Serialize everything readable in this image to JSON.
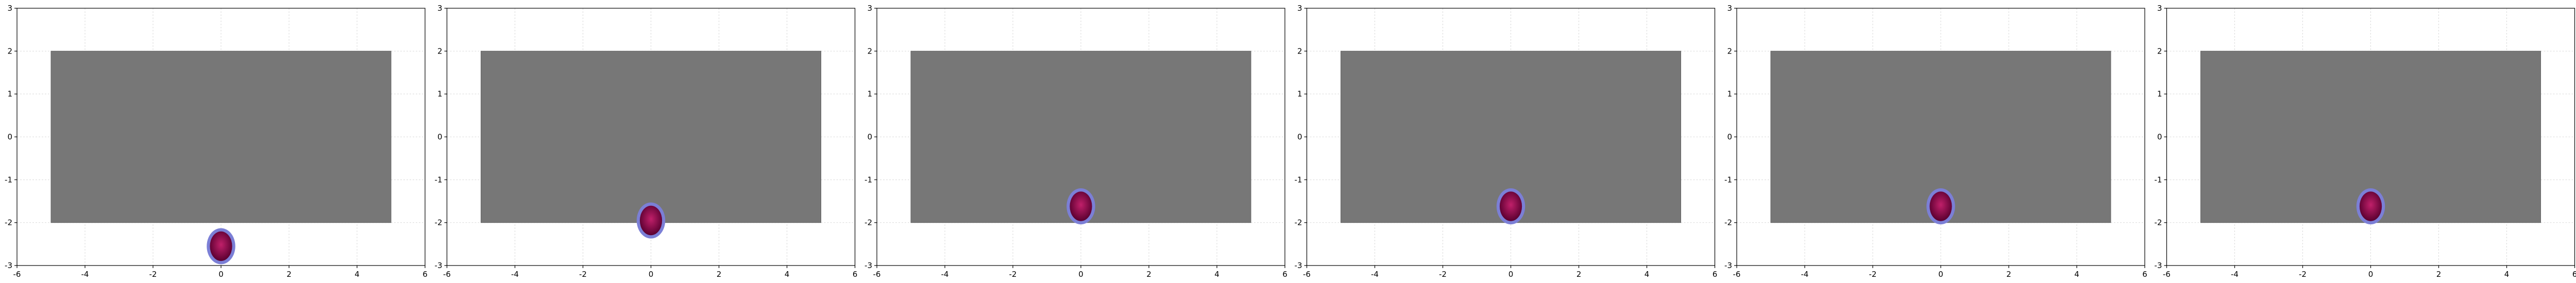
{
  "colors": {
    "background": "#ffffff",
    "rectangle_fill": "#777777",
    "rectangle_edge": "#666666",
    "ball_outer": "#7b7fd6",
    "ball_inner_light": "#c0206a",
    "ball_inner_dark": "#5a0030",
    "grid": "#d9d9d9"
  },
  "chart_data": [
    {
      "type": "scatter",
      "xlim": [
        -6,
        6
      ],
      "ylim": [
        -3,
        3
      ],
      "x_ticks": [
        -6,
        -4,
        -2,
        0,
        2,
        4,
        6
      ],
      "y_ticks": [
        -3,
        -2,
        -1,
        0,
        1,
        2,
        3
      ],
      "x_tick_labels": [
        "-6",
        "-4",
        "-2",
        "0",
        "2",
        "4",
        "6"
      ],
      "y_tick_labels": [
        "-3",
        "-2",
        "-1",
        "0",
        "1",
        "2",
        "3"
      ],
      "grid": true,
      "rectangle": {
        "x0": -5,
        "x1": 5,
        "y0": -2,
        "y1": 2
      },
      "ball": {
        "x": 0,
        "y": -2.55,
        "radius": 0.42
      }
    },
    {
      "type": "scatter",
      "xlim": [
        -6,
        6
      ],
      "ylim": [
        -3,
        3
      ],
      "x_ticks": [
        -6,
        -4,
        -2,
        0,
        2,
        4,
        6
      ],
      "y_ticks": [
        -3,
        -2,
        -1,
        0,
        1,
        2,
        3
      ],
      "x_tick_labels": [
        "-6",
        "-4",
        "-2",
        "0",
        "2",
        "4",
        "6"
      ],
      "y_tick_labels": [
        "-3",
        "-2",
        "-1",
        "0",
        "1",
        "2",
        "3"
      ],
      "grid": true,
      "rectangle": {
        "x0": -5,
        "x1": 5,
        "y0": -2,
        "y1": 2
      },
      "ball": {
        "x": 0,
        "y": -1.95,
        "radius": 0.42
      }
    },
    {
      "type": "scatter",
      "xlim": [
        -6,
        6
      ],
      "ylim": [
        -3,
        3
      ],
      "x_ticks": [
        -6,
        -4,
        -2,
        0,
        2,
        4,
        6
      ],
      "y_ticks": [
        -3,
        -2,
        -1,
        0,
        1,
        2,
        3
      ],
      "x_tick_labels": [
        "-6",
        "-4",
        "-2",
        "0",
        "2",
        "4",
        "6"
      ],
      "y_tick_labels": [
        "-3",
        "-2",
        "-1",
        "0",
        "1",
        "2",
        "3"
      ],
      "grid": true,
      "rectangle": {
        "x0": -5,
        "x1": 5,
        "y0": -2,
        "y1": 2
      },
      "ball": {
        "x": 0,
        "y": -1.62,
        "radius": 0.42
      }
    },
    {
      "type": "scatter",
      "xlim": [
        -6,
        6
      ],
      "ylim": [
        -3,
        3
      ],
      "x_ticks": [
        -6,
        -4,
        -2,
        0,
        2,
        4,
        6
      ],
      "y_ticks": [
        -3,
        -2,
        -1,
        0,
        1,
        2,
        3
      ],
      "x_tick_labels": [
        "-6",
        "-4",
        "-2",
        "0",
        "2",
        "4",
        "6"
      ],
      "y_tick_labels": [
        "-3",
        "-2",
        "-1",
        "0",
        "1",
        "2",
        "3"
      ],
      "grid": true,
      "rectangle": {
        "x0": -5,
        "x1": 5,
        "y0": -2,
        "y1": 2
      },
      "ball": {
        "x": 0,
        "y": -1.62,
        "radius": 0.42
      }
    },
    {
      "type": "scatter",
      "xlim": [
        -6,
        6
      ],
      "ylim": [
        -3,
        3
      ],
      "x_ticks": [
        -6,
        -4,
        -2,
        0,
        2,
        4,
        6
      ],
      "y_ticks": [
        -3,
        -2,
        -1,
        0,
        1,
        2,
        3
      ],
      "x_tick_labels": [
        "-6",
        "-4",
        "-2",
        "0",
        "2",
        "4",
        "6"
      ],
      "y_tick_labels": [
        "-3",
        "-2",
        "-1",
        "0",
        "1",
        "2",
        "3"
      ],
      "grid": true,
      "rectangle": {
        "x0": -5,
        "x1": 5,
        "y0": -2,
        "y1": 2
      },
      "ball": {
        "x": 0,
        "y": -1.62,
        "radius": 0.42
      }
    },
    {
      "type": "scatter",
      "xlim": [
        -6,
        6
      ],
      "ylim": [
        -3,
        3
      ],
      "x_ticks": [
        -6,
        -4,
        -2,
        0,
        2,
        4,
        6
      ],
      "y_ticks": [
        -3,
        -2,
        -1,
        0,
        1,
        2,
        3
      ],
      "x_tick_labels": [
        "-6",
        "-4",
        "-2",
        "0",
        "2",
        "4",
        "6"
      ],
      "y_tick_labels": [
        "-3",
        "-2",
        "-1",
        "0",
        "1",
        "2",
        "3"
      ],
      "grid": true,
      "rectangle": {
        "x0": -5,
        "x1": 5,
        "y0": -2,
        "y1": 2
      },
      "ball": {
        "x": 0,
        "y": -1.62,
        "radius": 0.42
      }
    }
  ]
}
